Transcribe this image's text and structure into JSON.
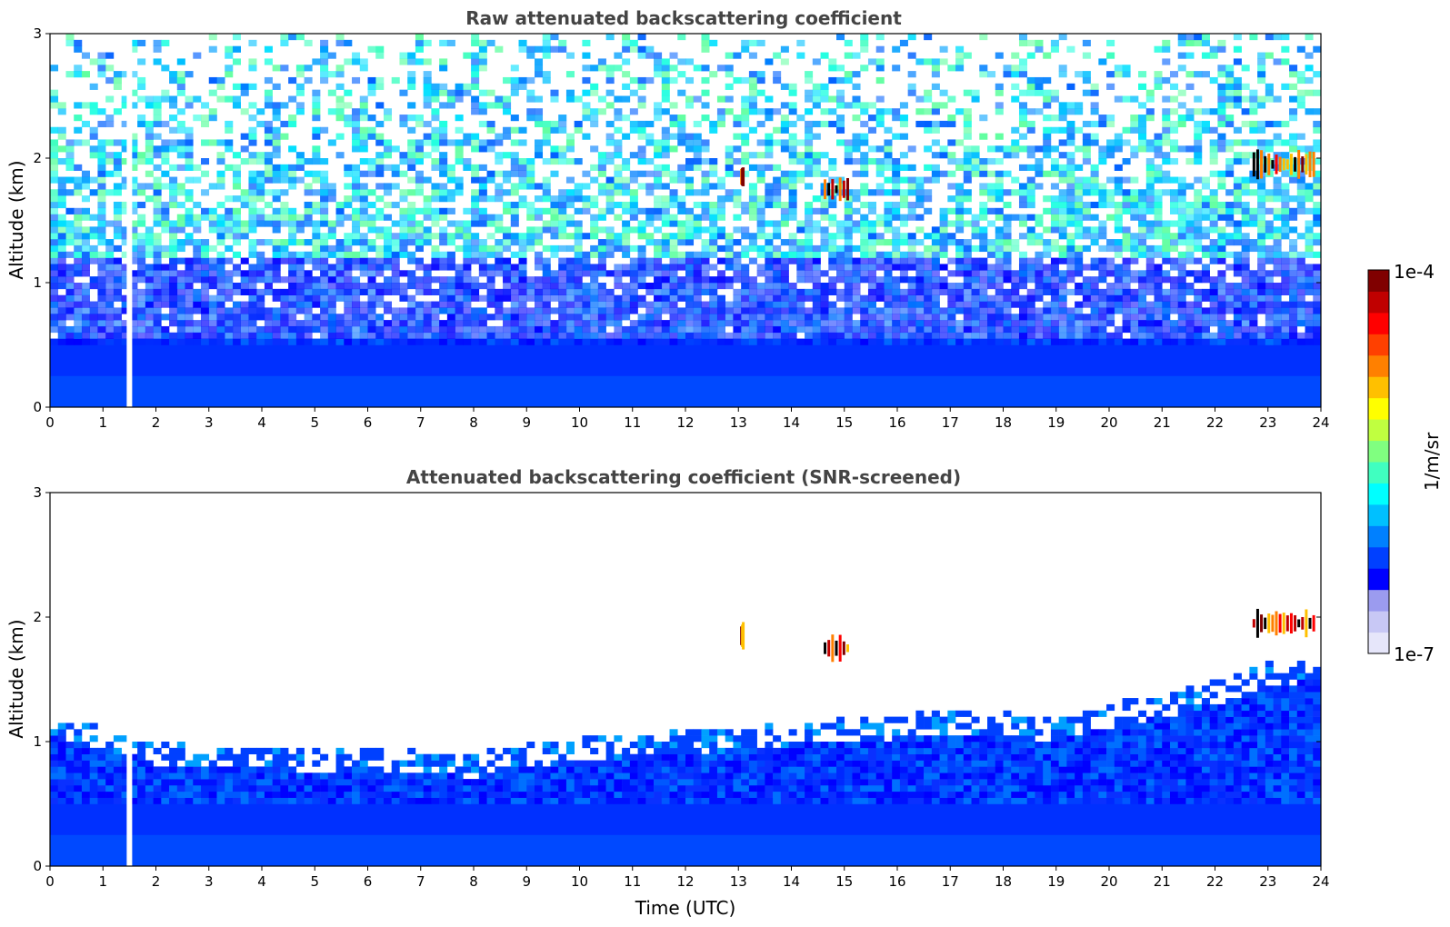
{
  "chart_data": [
    {
      "type": "heatmap",
      "title": "Raw attenuated backscattering coefficient",
      "xlabel": "",
      "ylabel": "Altitude (km)",
      "xlim": [
        0,
        24
      ],
      "ylim": [
        0,
        3
      ],
      "xticks": [
        0,
        1,
        2,
        3,
        4,
        5,
        6,
        7,
        8,
        9,
        10,
        11,
        12,
        13,
        14,
        15,
        16,
        17,
        18,
        19,
        20,
        21,
        22,
        23,
        24
      ],
      "yticks": [
        0,
        1,
        2,
        3
      ],
      "data_gap_time_utc": 1.5,
      "variant": "raw",
      "cloud_features": [
        {
          "time_start": 14.6,
          "time_end": 15.1,
          "altitude": 1.75,
          "intensity": "high"
        },
        {
          "time_start": 13.05,
          "time_end": 13.1,
          "altitude": 1.85,
          "intensity": "high"
        },
        {
          "time_start": 22.7,
          "time_end": 23.9,
          "altitude": 1.95,
          "intensity": "high"
        }
      ]
    },
    {
      "type": "heatmap",
      "title": "Attenuated backscattering coefficient (SNR-screened)",
      "xlabel": "Time (UTC)",
      "ylabel": "Altitude (km)",
      "xlim": [
        0,
        24
      ],
      "ylim": [
        0,
        3
      ],
      "xticks": [
        0,
        1,
        2,
        3,
        4,
        5,
        6,
        7,
        8,
        9,
        10,
        11,
        12,
        13,
        14,
        15,
        16,
        17,
        18,
        19,
        20,
        21,
        22,
        23,
        24
      ],
      "yticks": [
        0,
        1,
        2,
        3
      ],
      "data_gap_time_utc": 1.5,
      "variant": "screened",
      "boundary_layer_top_km": [
        [
          0,
          1.05
        ],
        [
          1,
          0.95
        ],
        [
          2,
          0.82
        ],
        [
          3,
          0.78
        ],
        [
          4,
          0.78
        ],
        [
          5,
          0.77
        ],
        [
          6,
          0.78
        ],
        [
          7,
          0.76
        ],
        [
          8,
          0.72
        ],
        [
          9,
          0.8
        ],
        [
          10,
          0.85
        ],
        [
          11,
          0.88
        ],
        [
          12,
          0.9
        ],
        [
          13,
          0.93
        ],
        [
          14,
          0.97
        ],
        [
          15,
          1.0
        ],
        [
          16,
          1.03
        ],
        [
          17,
          1.07
        ],
        [
          18,
          1.05
        ],
        [
          19,
          1.0
        ],
        [
          20,
          1.12
        ],
        [
          21,
          1.2
        ],
        [
          22,
          1.3
        ],
        [
          23,
          1.45
        ],
        [
          24,
          1.5
        ]
      ],
      "cloud_features": [
        {
          "time_start": 14.6,
          "time_end": 15.1,
          "altitude": 1.75,
          "intensity": "high"
        },
        {
          "time_start": 13.05,
          "time_end": 13.1,
          "altitude": 1.85,
          "intensity": "high"
        },
        {
          "time_start": 22.7,
          "time_end": 23.9,
          "altitude": 1.95,
          "intensity": "high"
        }
      ]
    }
  ],
  "colorbar": {
    "label": "1/m/sr",
    "max_label": "1e-4",
    "min_label": "1e-7",
    "scale": "log",
    "colormap": "jet",
    "colors": [
      "#e6e6fa",
      "#c8c8f5",
      "#9b9bef",
      "#0000ff",
      "#0040ff",
      "#0080ff",
      "#00c0ff",
      "#00ffff",
      "#40ffc0",
      "#80ff80",
      "#c0ff40",
      "#ffff00",
      "#ffc000",
      "#ff8000",
      "#ff4000",
      "#ff0000",
      "#c00000",
      "#800000"
    ]
  }
}
